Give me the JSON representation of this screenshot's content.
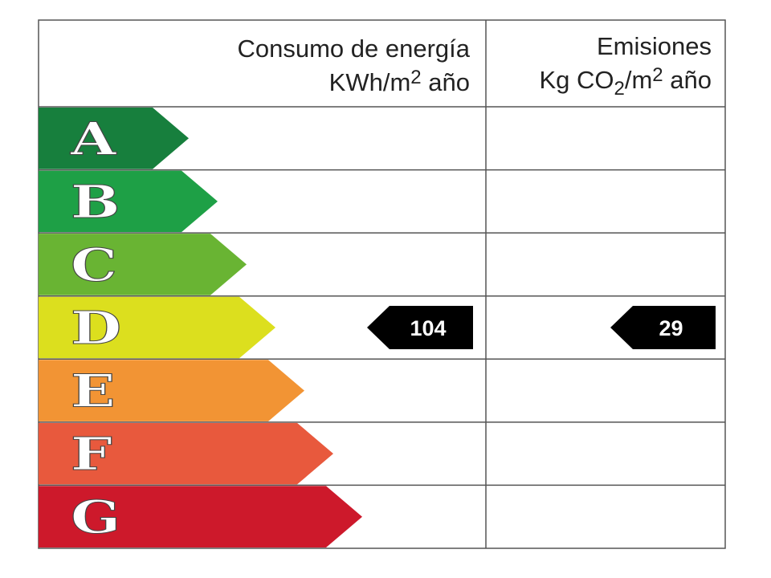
{
  "header": {
    "energy": {
      "line1": "Consumo de energía",
      "line2": [
        "KWh/m",
        "2",
        " año"
      ]
    },
    "emissions": {
      "line1": "Emisiones",
      "line2": [
        "Kg CO",
        "2",
        "/m",
        "2",
        " año"
      ]
    }
  },
  "rows": [
    {
      "letter": "A",
      "color": "#177f3d"
    },
    {
      "letter": "B",
      "color": "#1ea046"
    },
    {
      "letter": "C",
      "color": "#69b433"
    },
    {
      "letter": "D",
      "color": "#dcdf1e",
      "energy": 104,
      "emissions": 29
    },
    {
      "letter": "E",
      "color": "#f29434"
    },
    {
      "letter": "F",
      "color": "#e8593d"
    },
    {
      "letter": "G",
      "color": "#cd192b"
    }
  ]
}
